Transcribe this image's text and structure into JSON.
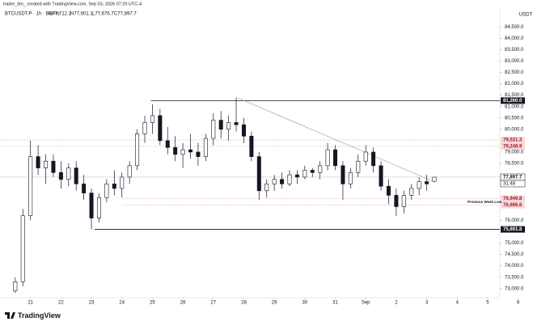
{
  "chart_data": {
    "type": "candlestick",
    "subtitle": "trader_tim_ created with TradingView.com, Sep 03, 2026 07:20 UTC-4",
    "title": "BTCUSDT.P · 1h · BloFin",
    "last_bar_labels": [
      "O77,712.2",
      "H77,901.1",
      "L77,676.7",
      "C77,897.7"
    ],
    "currency": "USDT",
    "brand": "TradingView",
    "up_color": "#ffffff",
    "down_color": "#131722",
    "x": [
      -0.5,
      -0.25,
      0,
      0.25,
      0.5,
      0.75,
      1,
      1.25,
      1.5,
      1.75,
      2,
      2.25,
      2.5,
      2.75,
      3,
      3.25,
      3.5,
      3.75,
      4,
      4.25,
      4.5,
      4.75,
      5,
      5.25,
      5.5,
      5.75,
      6,
      6.25,
      6.5,
      6.75,
      7,
      7.25,
      7.5,
      7.75,
      8,
      8.25,
      8.5,
      8.75,
      9,
      9.25,
      9.5,
      9.75,
      10,
      10.25,
      10.5,
      10.75,
      11,
      11.25,
      11.5,
      11.75,
      12,
      12.25,
      12.5,
      12.75,
      13,
      13.25
    ],
    "open": [
      72900,
      73300,
      76200,
      78800,
      78300,
      78600,
      78100,
      77800,
      78300,
      77600,
      77200,
      76100,
      77000,
      77600,
      77400,
      77900,
      78400,
      79800,
      80300,
      80600,
      79500,
      79200,
      78900,
      79100,
      79000,
      78800,
      79600,
      80400,
      80000,
      80300,
      80200,
      79700,
      78800,
      77300,
      77600,
      77800,
      77600,
      78000,
      77900,
      78200,
      78100,
      78400,
      79100,
      78400,
      77600,
      78100,
      78600,
      79000,
      78400,
      77500,
      77100,
      76600,
      77100,
      77400,
      77700,
      77712.2
    ],
    "high": [
      73500,
      76500,
      79500,
      79300,
      78900,
      78900,
      78600,
      78500,
      78600,
      78000,
      77400,
      77200,
      77800,
      78200,
      78100,
      78600,
      80000,
      80600,
      81100,
      80900,
      80100,
      79700,
      79400,
      79800,
      79400,
      79800,
      80700,
      80800,
      80600,
      81400,
      80500,
      79900,
      79000,
      77800,
      78000,
      78100,
      78200,
      78200,
      78400,
      78300,
      78600,
      79400,
      79300,
      78600,
      78300,
      78900,
      79300,
      79200,
      78600,
      77800,
      77400,
      77300,
      77600,
      77900,
      78000,
      77901.1
    ],
    "low": [
      72800,
      73100,
      76000,
      78000,
      77600,
      77900,
      77400,
      77500,
      77300,
      76900,
      75600,
      75900,
      76800,
      77100,
      77000,
      77600,
      78200,
      79400,
      79800,
      79300,
      78900,
      78600,
      78300,
      78700,
      78400,
      78600,
      79300,
      79600,
      79500,
      79900,
      79400,
      78600,
      76900,
      77000,
      77300,
      77400,
      77500,
      77600,
      77800,
      77900,
      77800,
      78200,
      78200,
      76900,
      77400,
      77900,
      78400,
      78100,
      77300,
      76700,
      76200,
      76300,
      76900,
      77100,
      77300,
      77676.7
    ],
    "close": [
      73300,
      76200,
      78800,
      78300,
      78600,
      78100,
      77800,
      78300,
      77600,
      77200,
      76100,
      77000,
      77600,
      77400,
      77900,
      78400,
      79800,
      80300,
      80600,
      79500,
      79200,
      78900,
      79100,
      79000,
      78800,
      79600,
      80400,
      80000,
      80300,
      80200,
      79700,
      78800,
      77300,
      77600,
      77800,
      77600,
      78000,
      77900,
      78200,
      78100,
      78400,
      79100,
      78400,
      77600,
      78100,
      78600,
      79000,
      78400,
      77500,
      77100,
      76600,
      77100,
      77400,
      77700,
      77600,
      77897.7
    ],
    "xlim": [
      -1,
      15.4
    ],
    "xticks": [
      {
        "value": 0,
        "label": "21"
      },
      {
        "value": 1,
        "label": "22"
      },
      {
        "value": 2,
        "label": "23"
      },
      {
        "value": 3,
        "label": "24"
      },
      {
        "value": 4,
        "label": "25"
      },
      {
        "value": 5,
        "label": "26"
      },
      {
        "value": 6,
        "label": "27"
      },
      {
        "value": 7,
        "label": "28"
      },
      {
        "value": 8,
        "label": "29"
      },
      {
        "value": 9,
        "label": "30"
      },
      {
        "value": 10,
        "label": "31"
      },
      {
        "value": 11,
        "label": "Sep"
      },
      {
        "value": 12,
        "label": "2"
      },
      {
        "value": 13,
        "label": "3"
      },
      {
        "value": 14,
        "label": "4"
      },
      {
        "value": 15,
        "label": "5"
      },
      {
        "value": 16,
        "label": "6"
      }
    ],
    "ylim": [
      72600,
      84900
    ],
    "yticks": [
      {
        "value": 84500,
        "label": "84,500.0"
      },
      {
        "value": 84000,
        "label": "84,000.0"
      },
      {
        "value": 83500,
        "label": "83,500.0"
      },
      {
        "value": 83000,
        "label": "83,000.0"
      },
      {
        "value": 82500,
        "label": "82,500.0"
      },
      {
        "value": 82000,
        "label": "82,000.0"
      },
      {
        "value": 81500,
        "label": "81,500.0"
      },
      {
        "value": 81000,
        "label": "81,000.0"
      },
      {
        "value": 80500,
        "label": "80,500.0"
      },
      {
        "value": 80000,
        "label": "80,000.0"
      },
      {
        "value": 79000,
        "label": "79,000.0"
      },
      {
        "value": 78500,
        "label": "78,500.0"
      },
      {
        "value": 76000,
        "label": "76,000.0"
      },
      {
        "value": 75000,
        "label": "75,000.0"
      },
      {
        "value": 74500,
        "label": "74,500.0"
      },
      {
        "value": 74000,
        "label": "74,000.0"
      },
      {
        "value": 73500,
        "label": "73,500.0"
      },
      {
        "value": 73000,
        "label": "73,000.0"
      }
    ],
    "levels": [
      {
        "value": 81260,
        "label": "81,260.0",
        "style": "dark",
        "x_start": 3.95
      },
      {
        "value": 79531.3,
        "label": "79,531.3",
        "style": "pink",
        "x_start": -1
      },
      {
        "value": 79248.9,
        "label": "79,248.9",
        "style": "pink",
        "x_start": -1
      },
      {
        "value": 77897.7,
        "label": "77,897.7",
        "style": "current",
        "x_start": -1
      },
      {
        "value": 76949.8,
        "label": "76,949.8",
        "style": "pink",
        "x_start": 3
      },
      {
        "value": 76666.6,
        "label": "76,666.6",
        "style": "pink",
        "x_start": 3
      },
      {
        "value": 75601.8,
        "label": "75,601.8",
        "style": "dark",
        "x_start": 2.1
      }
    ],
    "countdown": "31:48",
    "annotation": {
      "text": "Previous Week Low",
      "x": 14.9,
      "y": 76800
    },
    "trendline": {
      "x": [
        6.8,
        13.2
      ],
      "y": [
        81380,
        77720
      ]
    }
  }
}
